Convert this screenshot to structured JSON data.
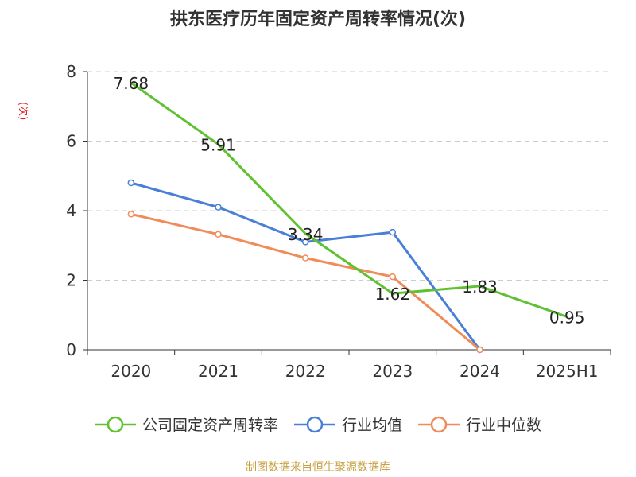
{
  "chart_data": {
    "type": "line",
    "title": "拱东医疗历年固定资产周转率情况(次)",
    "ylabel": "(次)",
    "xlabel": "",
    "categories": [
      "2020",
      "2021",
      "2022",
      "2023",
      "2024",
      "2025H1"
    ],
    "ylim": [
      0,
      8
    ],
    "yticks": [
      "0",
      "2",
      "4",
      "6",
      "8"
    ],
    "grid": true,
    "legend_position": "bottom",
    "series": [
      {
        "name": "公司固定资产周转率",
        "color": "#5fc130",
        "values": [
          7.68,
          5.91,
          3.34,
          1.62,
          1.83,
          0.95
        ],
        "labels": [
          "7.68",
          "5.91",
          "3.34",
          "1.62",
          "1.83",
          "0.95"
        ],
        "markers": false
      },
      {
        "name": "行业均值",
        "color": "#4a7fd6",
        "values": [
          4.8,
          4.1,
          3.1,
          3.38,
          0.0,
          null
        ],
        "markers": true
      },
      {
        "name": "行业中位数",
        "color": "#f08c5a",
        "values": [
          3.9,
          3.32,
          2.64,
          2.1,
          0.0,
          null
        ],
        "markers": true
      }
    ]
  },
  "source": "制图数据来自恒生聚源数据库"
}
